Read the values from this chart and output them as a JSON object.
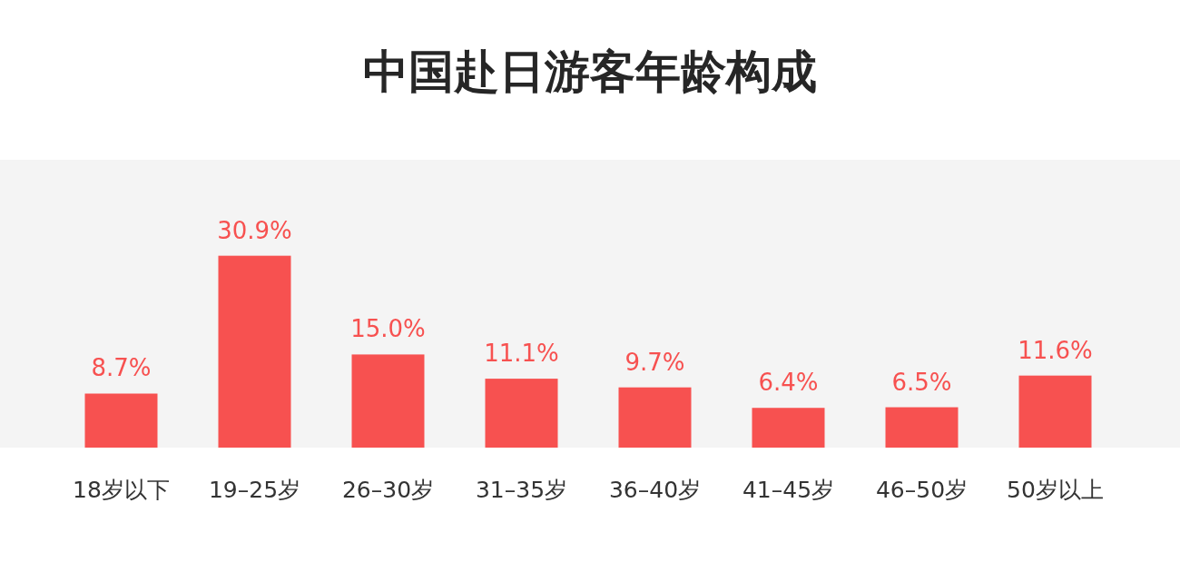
{
  "chart_data": {
    "type": "bar",
    "title": "中国赴日游客年龄构成",
    "categories": [
      "18岁以下",
      "19–25岁",
      "26–30岁",
      "31–35岁",
      "36–40岁",
      "41–45岁",
      "46–50岁",
      "50岁以上"
    ],
    "values": [
      8.7,
      30.9,
      15.0,
      11.1,
      9.7,
      6.4,
      6.5,
      11.6
    ],
    "value_labels": [
      "8.7%",
      "30.9%",
      "15.0%",
      "11.1%",
      "9.7%",
      "6.4%",
      "6.5%",
      "11.6%"
    ],
    "color": "#f75150"
  }
}
